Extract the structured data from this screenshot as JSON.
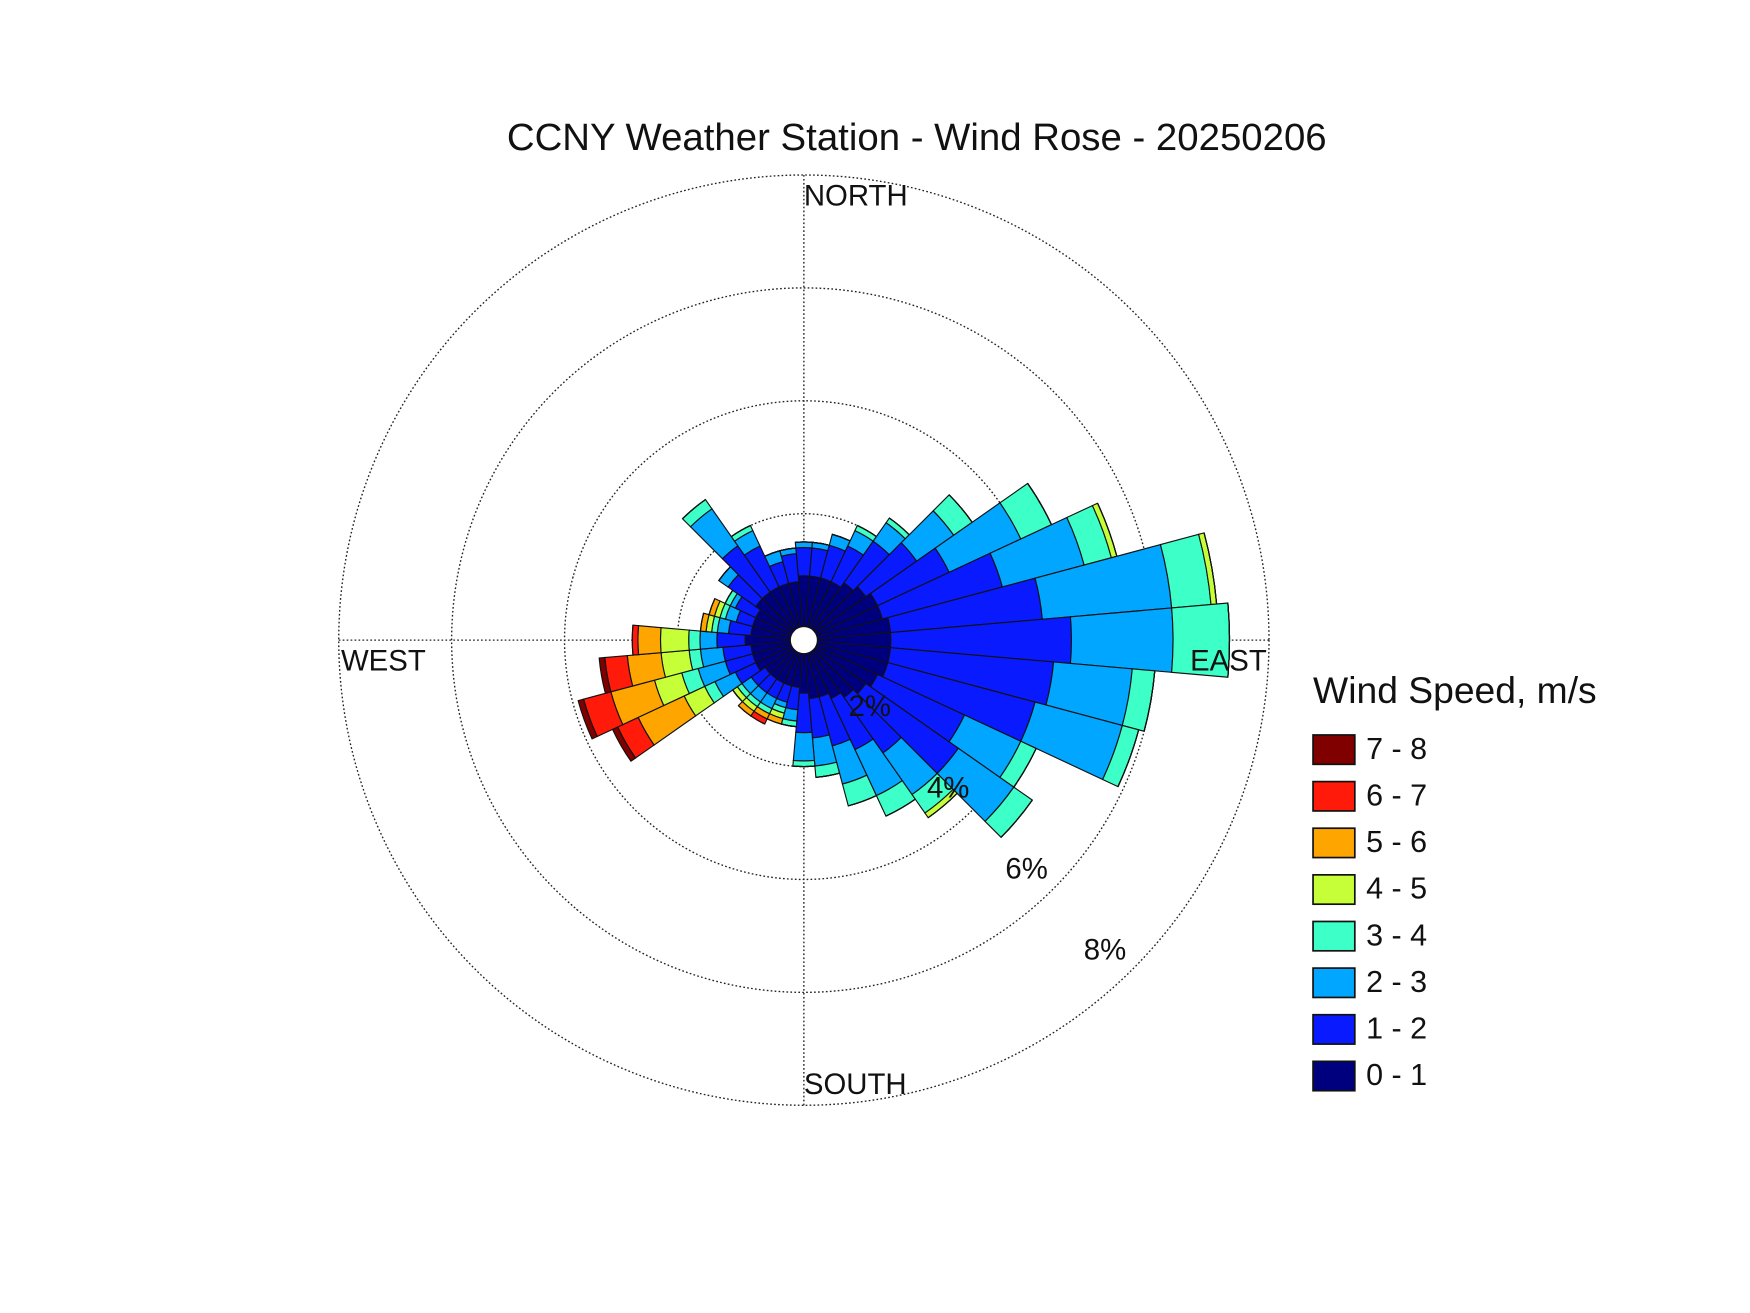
{
  "chart_data": {
    "type": "windrose",
    "title": "CCNY Weather Station - Wind Rose - 20250206",
    "legend_title": "Wind Speed, m/s",
    "direction_labels": [
      "NORTH",
      "EAST",
      "SOUTH",
      "WEST"
    ],
    "x": [
      0,
      10,
      20,
      30,
      40,
      50,
      60,
      70,
      80,
      90,
      100,
      110,
      120,
      130,
      140,
      150,
      160,
      170,
      180,
      190,
      200,
      210,
      220,
      230,
      240,
      250,
      260,
      270,
      280,
      290,
      300,
      310,
      320,
      330,
      340,
      350
    ],
    "rlim": [
      0,
      8
    ],
    "rticks": [
      {
        "value": 2,
        "label": "2%"
      },
      {
        "value": 4,
        "label": "4%"
      },
      {
        "value": 6,
        "label": "6%"
      },
      {
        "value": 8,
        "label": "8%"
      }
    ],
    "grid": true,
    "series": [
      {
        "name": "0 - 1",
        "color": "#00007f",
        "values": [
          0.9,
          0.9,
          0.9,
          0.9,
          1.0,
          1.1,
          1.2,
          1.2,
          1.3,
          1.3,
          1.3,
          1.3,
          1.2,
          1.1,
          1.0,
          0.9,
          0.8,
          0.8,
          0.7,
          0.6,
          0.6,
          0.6,
          0.6,
          0.6,
          0.7,
          0.7,
          0.7,
          0.8,
          0.7,
          0.7,
          0.7,
          0.8,
          0.8,
          0.8,
          0.8,
          0.8
        ]
      },
      {
        "name": "1 - 2",
        "color": "#0a1aff",
        "values": [
          0.5,
          0.5,
          0.6,
          0.7,
          0.9,
          1.1,
          1.4,
          2.2,
          2.7,
          3.2,
          2.9,
          2.7,
          1.7,
          2.0,
          1.2,
          1.0,
          0.9,
          0.7,
          0.7,
          0.4,
          0.3,
          0.3,
          0.3,
          0.3,
          0.4,
          0.5,
          0.5,
          0.5,
          0.4,
          0.3,
          0.4,
          0.6,
          1.0,
          0.8,
          0.4,
          0.5
        ]
      },
      {
        "name": "2 - 3",
        "color": "#00a6ff",
        "values": [
          0.1,
          0.1,
          0.2,
          0.3,
          0.4,
          0.8,
          1.4,
          1.5,
          2.3,
          1.8,
          1.4,
          1.6,
          1.1,
          1.2,
          0.9,
          0.9,
          0.7,
          0.5,
          0.5,
          0.2,
          0.1,
          0.2,
          0.2,
          0.2,
          0.4,
          0.5,
          0.4,
          0.3,
          0.2,
          0.2,
          0.1,
          0.2,
          0.8,
          0.3,
          0.2,
          0.1
        ]
      },
      {
        "name": "3 - 4",
        "color": "#3dffc8",
        "values": [
          0,
          0,
          0,
          0.1,
          0.1,
          0.4,
          0.6,
          0.5,
          0.7,
          1.0,
          0.4,
          0.3,
          0.3,
          0.4,
          0.4,
          0.4,
          0.4,
          0.2,
          0.1,
          0.1,
          0.1,
          0.1,
          0.1,
          0.1,
          0.2,
          0.3,
          0.2,
          0.2,
          0.1,
          0.1,
          0.1,
          0,
          0.2,
          0.1,
          0,
          0
        ]
      },
      {
        "name": "4 - 5",
        "color": "#c6ff38",
        "values": [
          0,
          0,
          0,
          0,
          0,
          0,
          0,
          0.1,
          0.1,
          0,
          0,
          0,
          0,
          0,
          0.1,
          0,
          0,
          0,
          0,
          0,
          0.1,
          0,
          0.1,
          0.1,
          0.4,
          0.5,
          0.5,
          0.5,
          0.1,
          0.1,
          0,
          0,
          0,
          0,
          0,
          0
        ]
      },
      {
        "name": "5 - 6",
        "color": "#ffa500",
        "values": [
          0,
          0,
          0,
          0,
          0,
          0,
          0,
          0,
          0,
          0,
          0,
          0,
          0,
          0,
          0,
          0,
          0,
          0,
          0,
          0,
          0.1,
          0.1,
          0.1,
          0,
          0.9,
          0.8,
          0.6,
          0.4,
          0.1,
          0.1,
          0,
          0,
          0,
          0,
          0,
          0
        ]
      },
      {
        "name": "6 - 7",
        "color": "#ff1a0a",
        "values": [
          0,
          0,
          0,
          0,
          0,
          0,
          0,
          0,
          0,
          0,
          0,
          0,
          0,
          0,
          0,
          0,
          0,
          0,
          0,
          0,
          0,
          0.1,
          0,
          0,
          0.4,
          0.5,
          0.4,
          0.1,
          0,
          0,
          0,
          0,
          0,
          0,
          0,
          0
        ]
      },
      {
        "name": "7 - 8",
        "color": "#800000",
        "values": [
          0,
          0,
          0,
          0,
          0,
          0,
          0,
          0,
          0,
          0,
          0,
          0,
          0,
          0,
          0,
          0,
          0,
          0,
          0,
          0,
          0,
          0,
          0,
          0,
          0.1,
          0.1,
          0.1,
          0,
          0,
          0,
          0,
          0,
          0,
          0,
          0,
          0
        ]
      }
    ]
  }
}
